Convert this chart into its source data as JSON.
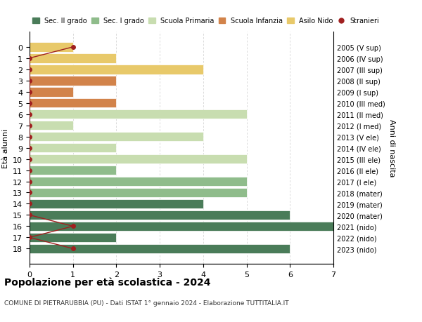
{
  "ages": [
    18,
    17,
    16,
    15,
    14,
    13,
    12,
    11,
    10,
    9,
    8,
    7,
    6,
    5,
    4,
    3,
    2,
    1,
    0
  ],
  "years": [
    "2005 (V sup)",
    "2006 (IV sup)",
    "2007 (III sup)",
    "2008 (II sup)",
    "2009 (I sup)",
    "2010 (III med)",
    "2011 (II med)",
    "2012 (I med)",
    "2013 (V ele)",
    "2014 (IV ele)",
    "2015 (III ele)",
    "2016 (II ele)",
    "2017 (I ele)",
    "2018 (mater)",
    "2019 (mater)",
    "2020 (mater)",
    "2021 (nido)",
    "2022 (nido)",
    "2023 (nido)"
  ],
  "bar_values": [
    6,
    2,
    7,
    6,
    4,
    5,
    5,
    2,
    5,
    2,
    4,
    1,
    5,
    2,
    1,
    2,
    4,
    2,
    1
  ],
  "bar_colors": [
    "#4a7c59",
    "#4a7c59",
    "#4a7c59",
    "#4a7c59",
    "#4a7c59",
    "#8fbc8b",
    "#8fbc8b",
    "#8fbc8b",
    "#c8ddb0",
    "#c8ddb0",
    "#c8ddb0",
    "#c8ddb0",
    "#c8ddb0",
    "#d2834a",
    "#d2834a",
    "#d2834a",
    "#e8c96a",
    "#e8c96a",
    "#e8c96a"
  ],
  "stranieri_x": [
    1,
    0,
    1,
    0,
    0,
    0,
    0,
    0,
    0,
    0,
    0,
    0,
    0,
    0,
    0,
    0,
    0,
    0,
    1
  ],
  "color_sec2": "#4a7c59",
  "color_sec1": "#8fbc8b",
  "color_prim": "#c8ddb0",
  "color_inf": "#d2834a",
  "color_nido": "#e8c96a",
  "color_stranieri": "#a02020",
  "legend_labels": [
    "Sec. II grado",
    "Sec. I grado",
    "Scuola Primaria",
    "Scuola Infanzia",
    "Asilo Nido",
    "Stranieri"
  ],
  "ylabel": "Età alunni",
  "ylabel_right": "Anni di nascita",
  "title": "Popolazione per età scolastica - 2024",
  "subtitle": "COMUNE DI PIETRARUBBIA (PU) - Dati ISTAT 1° gennaio 2024 - Elaborazione TUTTITALIA.IT",
  "xlim": [
    0,
    7
  ],
  "background_color": "#ffffff",
  "grid_color": "#cccccc"
}
